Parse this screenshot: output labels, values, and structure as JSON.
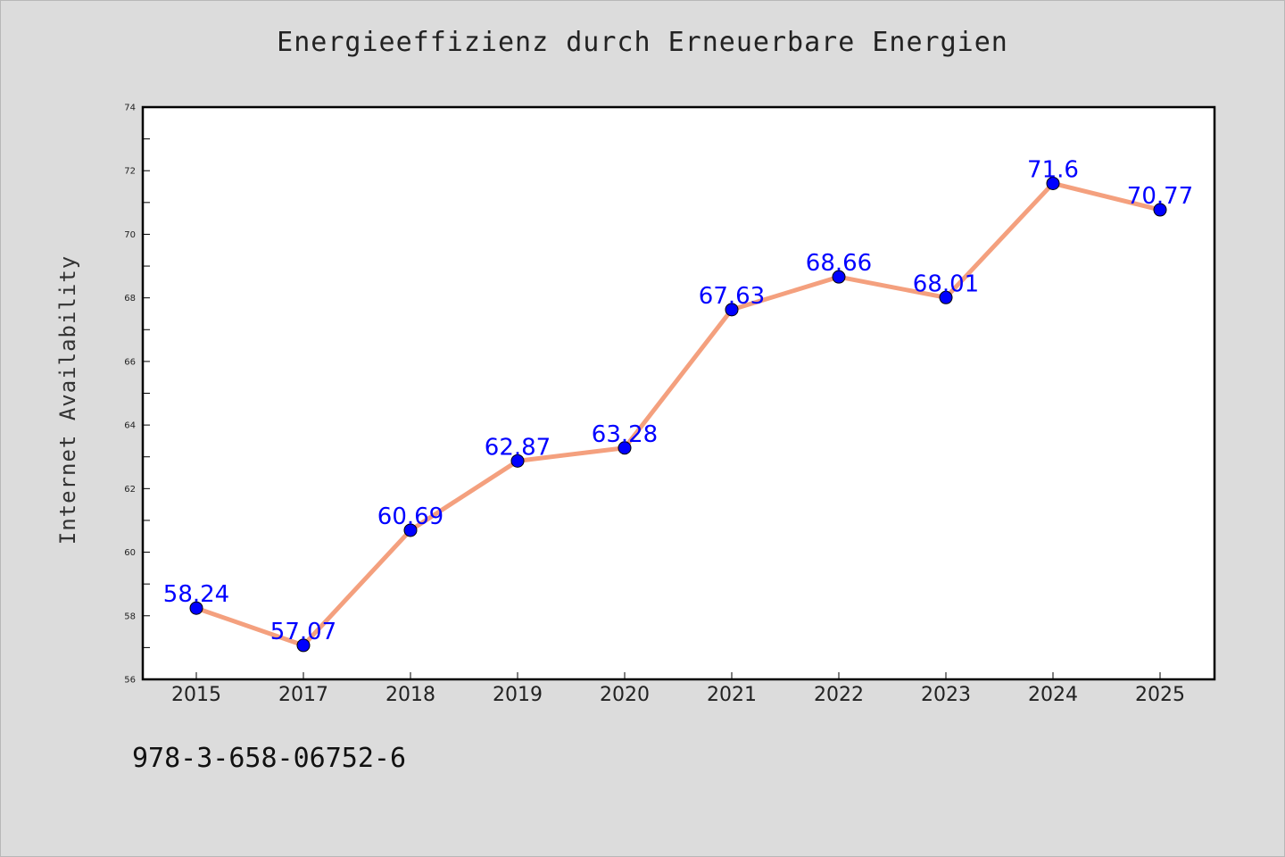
{
  "footer_text": "978-3-658-06752-6",
  "chart_data": {
    "type": "line",
    "title": "Energieeffizienz durch Erneuerbare Energien",
    "xlabel": "",
    "ylabel": "Internet Availability",
    "categories": [
      "2015",
      "2017",
      "2018",
      "2019",
      "2020",
      "2021",
      "2022",
      "2023",
      "2024",
      "2025"
    ],
    "values": [
      58.24,
      57.07,
      60.69,
      62.87,
      63.28,
      67.63,
      68.66,
      68.01,
      71.6,
      70.77
    ],
    "data_labels": [
      "58.24",
      "57.07",
      "60.69",
      "62.87",
      "63.28",
      "67.63",
      "68.66",
      "68.01",
      "71.6",
      "70.77"
    ],
    "ylim": [
      56,
      74
    ],
    "yticks": [
      56,
      58,
      60,
      62,
      64,
      66,
      68,
      70,
      72,
      74
    ],
    "grid": false,
    "line_color": "#f4a07e",
    "marker_color": "#0000ff",
    "label_color": "#0000ff"
  }
}
